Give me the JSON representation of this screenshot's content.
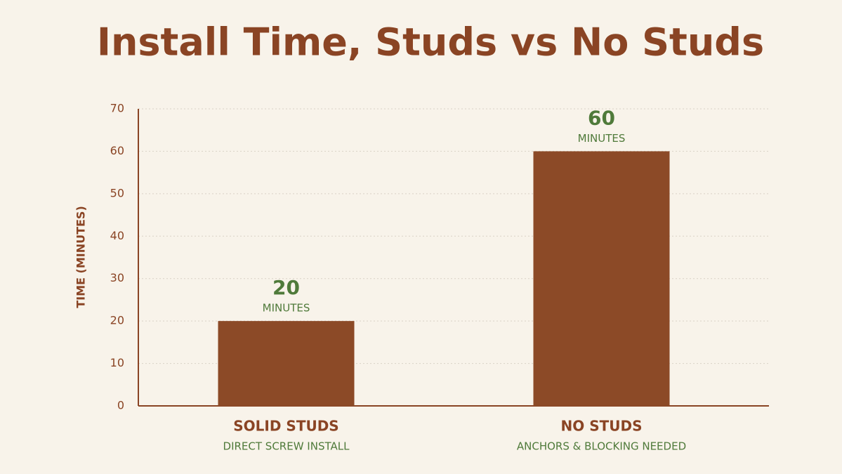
{
  "chart_data": {
    "type": "bar",
    "title": "Install Time, Studs vs No Studs",
    "y_label": "TIME (MINUTES)",
    "categories": [
      "SOLID STUDS",
      "NO STUDS"
    ],
    "category_sublabels": [
      "DIRECT SCREW INSTALL",
      "ANCHORS & BLOCKING NEEDED"
    ],
    "values": [
      20,
      60
    ],
    "value_sublabels": [
      "MINUTES",
      "MINUTES"
    ],
    "color": "#8c4a27",
    "label_color": "#4f7a3a",
    "ylim": [
      0,
      70
    ],
    "yticks": [
      0,
      10,
      20,
      30,
      40,
      50,
      60,
      70
    ],
    "grid": true
  }
}
